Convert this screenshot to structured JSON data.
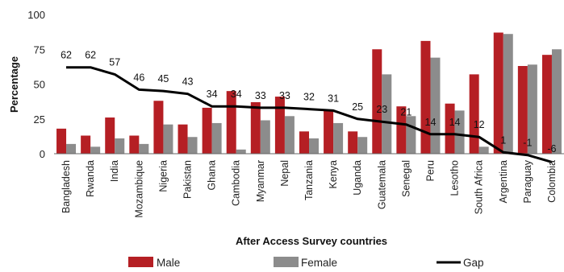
{
  "chart_data": {
    "type": "bar",
    "title": "",
    "xlabel": "After Access Survey countries",
    "ylabel": "Percentage",
    "ylim": [
      0,
      100
    ],
    "yticks": [
      0,
      25,
      50,
      75,
      100
    ],
    "grid": false,
    "legend_position": "bottom",
    "categories": [
      "Bangladesh",
      "Rwanda",
      "India",
      "Mozambique",
      "Nigeria",
      "Pakistan",
      "Ghana",
      "Cambodia",
      "Myanmar",
      "Nepal",
      "Tanzania",
      "Kenya",
      "Uganda",
      "Guatemala",
      "Senegal",
      "Peru",
      "Lesotho",
      "South Africa",
      "Argentina",
      "Paraguay",
      "Colombia"
    ],
    "series": [
      {
        "name": "Male",
        "type": "bar",
        "color": "#b51f24",
        "values": [
          18,
          13,
          26,
          13,
          38,
          21,
          33,
          45,
          37,
          41,
          16,
          31,
          16,
          75,
          34,
          81,
          36,
          57,
          87,
          63,
          71
        ]
      },
      {
        "name": "Female",
        "type": "bar",
        "color": "#8c8c8c",
        "values": [
          7,
          5,
          11,
          7,
          21,
          12,
          22,
          3,
          24,
          27,
          11,
          22,
          12,
          57,
          27,
          69,
          31,
          5,
          86,
          64,
          75
        ]
      },
      {
        "name": "Gap",
        "type": "line",
        "color": "#000000",
        "values": [
          62,
          62,
          57,
          46,
          45,
          43,
          34,
          34,
          33,
          33,
          32,
          31,
          25,
          23,
          21,
          14,
          14,
          12,
          1,
          -1,
          -6
        ],
        "labels": [
          "62",
          "62",
          "57",
          "46",
          "45",
          "43",
          "34",
          "34",
          "33",
          "33",
          "32",
          "31",
          "25",
          "23",
          "21",
          "14",
          "14",
          "12",
          "1",
          "-1",
          "-6"
        ]
      }
    ]
  }
}
